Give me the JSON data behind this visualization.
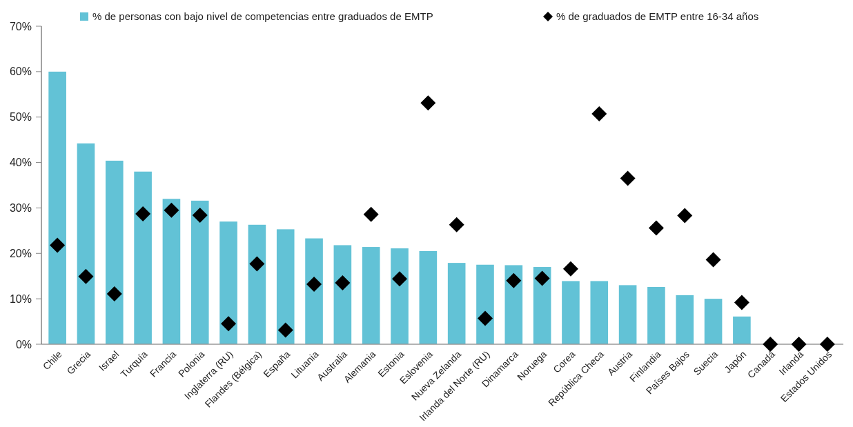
{
  "chart_data": {
    "type": "bar",
    "categories": [
      "Chile",
      "Grecia",
      "Israel",
      "Turquía",
      "Francia",
      "Polonia",
      "Inglaterra (RU)",
      "Flandes (Bélgica)",
      "España",
      "Lituania",
      "Australia",
      "Alemania",
      "Estonia",
      "Eslovenia",
      "Nueva Zelanda",
      "Irlanda del Norte (RU)",
      "Dinamarca",
      "Noruega",
      "Corea",
      "República Checa",
      "Austria",
      "Finlandia",
      "Países Bajos",
      "Suecia",
      "Japón",
      "Canadá",
      "Irlanda",
      "Estados Unidos"
    ],
    "series": [
      {
        "name": "% de personas con bajo nivel de competencias entre graduados de EMTP",
        "color": "#62c2d6",
        "values": [
          60,
          44.2,
          40.4,
          38,
          32,
          31.6,
          27,
          26.3,
          25.3,
          23.3,
          21.8,
          21.4,
          21.1,
          20.5,
          17.9,
          17.5,
          17.4,
          17,
          13.9,
          13.9,
          13,
          12.6,
          10.8,
          10,
          6.1,
          null,
          null,
          null
        ]
      },
      {
        "name": "% de graduados de EMTP entre 16-34 años",
        "type": "scatter",
        "color": "#000000",
        "marker": "diamond",
        "values": [
          21.8,
          14.9,
          11.1,
          28.7,
          29.5,
          28.4,
          4.5,
          17.7,
          3.1,
          13.2,
          13.5,
          28.6,
          14.4,
          53.1,
          26.3,
          5.7,
          14,
          14.5,
          16.6,
          50.7,
          36.5,
          25.6,
          28.3,
          18.6,
          9.2,
          0,
          0,
          0
        ]
      }
    ],
    "ylim": [
      0,
      70
    ],
    "yticks": [
      {
        "value": 0,
        "label": "0%"
      },
      {
        "value": 10,
        "label": "10%"
      },
      {
        "value": 20,
        "label": "20%"
      },
      {
        "value": 30,
        "label": "30%"
      },
      {
        "value": 40,
        "label": "40%"
      },
      {
        "value": 50,
        "label": "50%"
      },
      {
        "value": 60,
        "label": "60%"
      },
      {
        "value": 70,
        "label": "70%"
      }
    ],
    "legend": "top",
    "grid": false
  }
}
